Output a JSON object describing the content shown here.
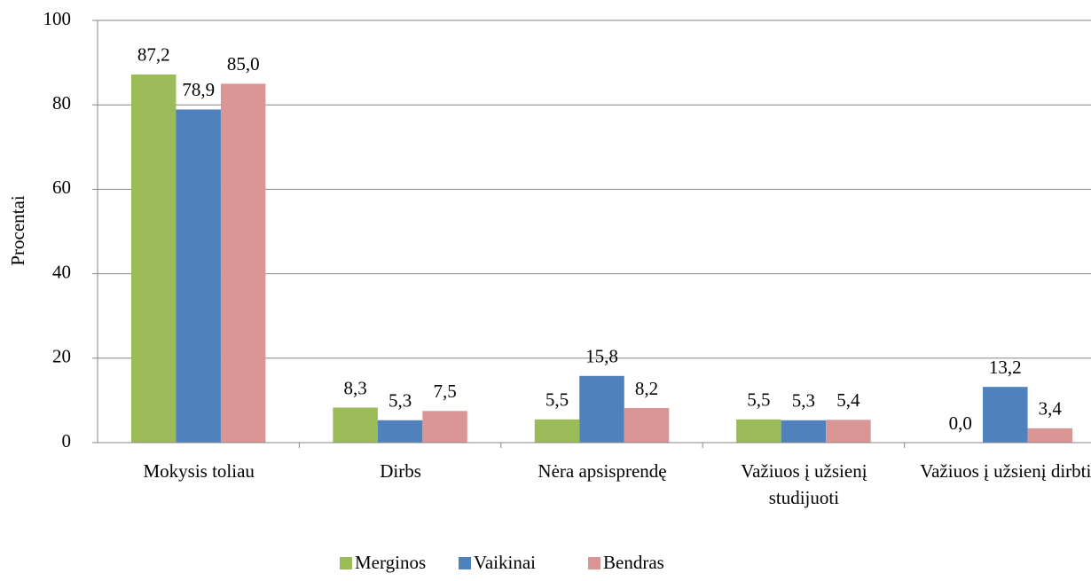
{
  "chart_data": {
    "type": "bar",
    "y_label": "Procentai",
    "categories": [
      "Mokysis toliau",
      "Dirbs",
      "Nėra apsisprendę",
      "Važiuos į užsienį studijuoti",
      "Važiuos į užsienį dirbti"
    ],
    "series": [
      {
        "name": "Merginos",
        "color": "#9bbb59",
        "values": [
          87.2,
          8.3,
          5.5,
          5.5,
          0.0
        ],
        "value_labels": [
          "87,2",
          "8,3",
          "5,5",
          "5,5",
          "0,0"
        ]
      },
      {
        "name": "Vaikinai",
        "color": "#4f81bd",
        "values": [
          78.9,
          5.3,
          15.8,
          5.3,
          13.2
        ],
        "value_labels": [
          "78,9",
          "5,3",
          "15,8",
          "5,3",
          "13,2"
        ]
      },
      {
        "name": "Bendras",
        "color": "#d99694",
        "values": [
          85.0,
          7.5,
          8.2,
          5.4,
          3.4
        ],
        "value_labels": [
          "85,0",
          "7,5",
          "8,2",
          "5,4",
          "3,4"
        ]
      }
    ],
    "ylim": [
      0,
      100
    ],
    "yticks": [
      0,
      20,
      40,
      60,
      80,
      100
    ],
    "grid": true,
    "legend": "bottom"
  }
}
